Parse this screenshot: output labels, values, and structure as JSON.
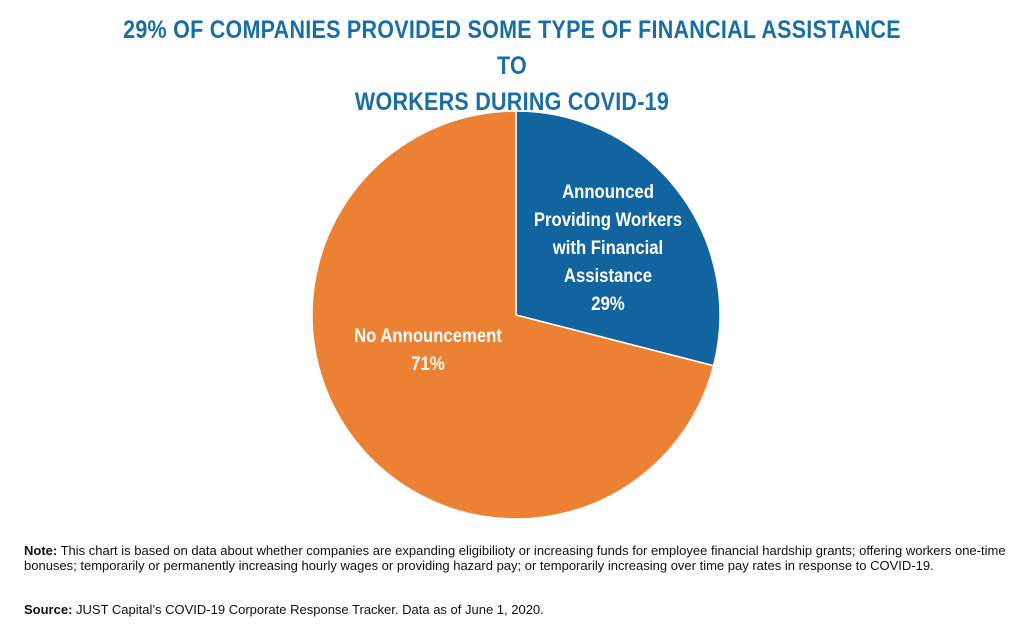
{
  "title": {
    "line1": "29% OF COMPANIES PROVIDED SOME TYPE OF FINANCIAL ASSISTANCE TO",
    "line2": "WORKERS DURING COVID-19"
  },
  "chart_data": {
    "type": "pie",
    "title": "29% OF COMPANIES PROVIDED SOME TYPE OF FINANCIAL ASSISTANCE TO WORKERS DURING COVID-19",
    "slices": [
      {
        "name": "Announced Providing Workers with Financial Assistance",
        "label_lines": [
          "Announced",
          "Providing Workers",
          "with Financial",
          "Assistance"
        ],
        "value": 29,
        "value_label": "29%",
        "color": "#12649f"
      },
      {
        "name": "No Announcement",
        "label_lines": [
          "No Announcement"
        ],
        "value": 71,
        "value_label": "71%",
        "color": "#ec8033"
      }
    ]
  },
  "note": {
    "label": "Note:",
    "text": " This chart is based on data about whether companies are expanding eligibilioty or increasing funds for employee financial hardship grants; offering workers one-time bonuses; temporarily or permanently increasing  hourly wages or providing hazard pay; or temporarily increasing over time pay rates in response to COVID-19."
  },
  "source": {
    "label": "Source:",
    "text": " JUST Capital’s COVID-19 Corporate Response Tracker. Data as of June 1, 2020."
  }
}
